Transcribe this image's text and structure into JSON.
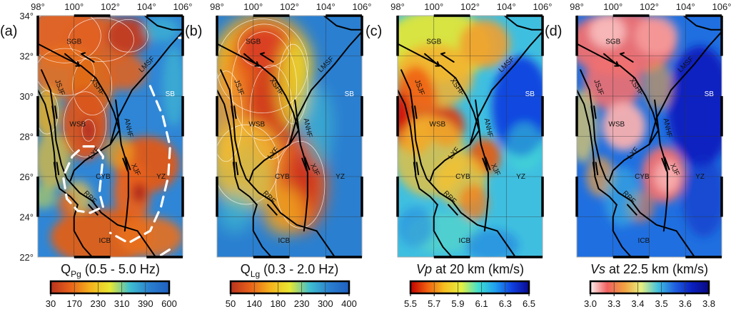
{
  "chart_data": [
    {
      "type": "heatmap",
      "panel_label": "(a)",
      "title_main": "Q",
      "title_sub": "Pg",
      "title_rest": " (0.5 - 5.0 Hz)",
      "xlim": [
        98,
        106
      ],
      "ylim": [
        22,
        34
      ],
      "x_ticks": [
        "98°",
        "100°",
        "102°",
        "104°",
        "106°"
      ],
      "y_ticks": [
        "22°",
        "24°",
        "26°",
        "28°",
        "30°",
        "32°",
        "34°"
      ],
      "colorbar": {
        "ticks": [
          "30",
          "170",
          "230",
          "310",
          "390",
          "600"
        ],
        "colors": [
          "#b8321f",
          "#e8621a",
          "#f5b21c",
          "#e8e832",
          "#3fbfd0",
          "#2a7fd0",
          "#1f5fbf"
        ]
      },
      "labels": [
        "SGB",
        "LMSF",
        "JSJF",
        "XSHF",
        "SB",
        "WSB",
        "ANHF",
        "LXF",
        "XJF",
        "CYB",
        "YZ",
        "RRF",
        "ICB"
      ],
      "has_dashed_outline": true
    },
    {
      "type": "heatmap",
      "panel_label": "(b)",
      "title_main": "Q",
      "title_sub": "Lg",
      "title_rest": " (0.3 - 2.0 Hz)",
      "xlim": [
        98,
        106
      ],
      "ylim": [
        22,
        34
      ],
      "x_ticks": [
        "98°",
        "100°",
        "102°",
        "104°",
        "106°"
      ],
      "colorbar": {
        "ticks": [
          "50",
          "140",
          "180",
          "230",
          "300",
          "400"
        ],
        "colors": [
          "#b8321f",
          "#e8621a",
          "#f5b21c",
          "#e8e832",
          "#3fbfd0",
          "#2a7fd0",
          "#1f5fbf"
        ]
      },
      "labels": [
        "SGB",
        "LMSF",
        "JSJF",
        "XSHF",
        "SB",
        "WSB",
        "ANHF",
        "LXF",
        "XJF",
        "CYB",
        "YZ",
        "RRF",
        "ICB"
      ]
    },
    {
      "type": "heatmap",
      "panel_label": "(c)",
      "title_main": "Vp",
      "title_rest": " at 20 km (km/s)",
      "xlim": [
        98,
        106
      ],
      "ylim": [
        22,
        34
      ],
      "x_ticks": [
        "98°",
        "100°",
        "102°",
        "104°",
        "106°"
      ],
      "colorbar": {
        "ticks": [
          "5.5",
          "5.7",
          "5.9",
          "6.1",
          "6.3",
          "6.5"
        ],
        "colors": [
          "#c00000",
          "#f06010",
          "#f5c020",
          "#e8f040",
          "#40e0d0",
          "#20a0f0",
          "#1040e0",
          "#0a0a90"
        ]
      },
      "labels": [
        "SGB",
        "LMSF",
        "JSJF",
        "XSHF",
        "SB",
        "WSB",
        "ANHF",
        "LXF",
        "XJF",
        "CYB",
        "YZ",
        "RRF",
        "ICB"
      ]
    },
    {
      "type": "heatmap",
      "panel_label": "(d)",
      "title_main": "Vs",
      "title_rest": " at 22.5 km (km/s)",
      "xlim": [
        98,
        106
      ],
      "ylim": [
        22,
        34
      ],
      "x_ticks": [
        "98°",
        "100°",
        "102°",
        "104°",
        "106°"
      ],
      "colorbar": {
        "ticks": [
          "3.0",
          "3.3",
          "3.4",
          "3.5",
          "3.6",
          "3.8"
        ],
        "colors": [
          "#fff0f0",
          "#f06060",
          "#f0a040",
          "#e8f080",
          "#40c0e0",
          "#2060e0",
          "#0a20c0",
          "#0a0a80"
        ]
      },
      "labels": [
        "SGB",
        "LMSF",
        "JSJF",
        "XSHF",
        "SB",
        "WSB",
        "ANHF",
        "LXF",
        "XJF",
        "CYB",
        "YZ",
        "RRF",
        "ICB"
      ]
    }
  ]
}
